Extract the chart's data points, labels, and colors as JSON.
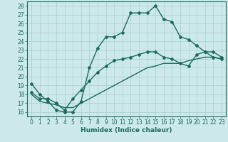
{
  "xlabel": "Humidex (Indice chaleur)",
  "bg_color": "#cce8ea",
  "line_color": "#1a6b5a",
  "grid_color": "#a8cfd0",
  "xlim": [
    -0.5,
    23.5
  ],
  "ylim": [
    15.5,
    28.5
  ],
  "xticks": [
    0,
    1,
    2,
    3,
    4,
    5,
    6,
    7,
    8,
    9,
    10,
    11,
    12,
    13,
    14,
    15,
    16,
    17,
    18,
    19,
    20,
    21,
    22,
    23
  ],
  "yticks": [
    16,
    17,
    18,
    19,
    20,
    21,
    22,
    23,
    24,
    25,
    26,
    27,
    28
  ],
  "line1_x": [
    0,
    1,
    2,
    3,
    4,
    5,
    6,
    7,
    8,
    9,
    10,
    11,
    12,
    13,
    14,
    15,
    16,
    17,
    18,
    19,
    20,
    21,
    22,
    23
  ],
  "line1_y": [
    19.2,
    18.0,
    17.2,
    16.2,
    16.0,
    16.0,
    17.2,
    21.0,
    23.2,
    24.5,
    24.5,
    25.0,
    27.2,
    27.2,
    27.2,
    28.0,
    26.5,
    26.2,
    24.5,
    24.2,
    23.5,
    22.8,
    22.8,
    22.2
  ],
  "line2_x": [
    0,
    1,
    2,
    3,
    4,
    5,
    6,
    7,
    8,
    9,
    10,
    11,
    12,
    13,
    14,
    15,
    16,
    17,
    18,
    19,
    20,
    21,
    22,
    23
  ],
  "line2_y": [
    18.2,
    17.5,
    17.5,
    17.0,
    16.2,
    17.5,
    18.5,
    19.5,
    20.5,
    21.2,
    21.8,
    22.0,
    22.2,
    22.5,
    22.8,
    22.8,
    22.2,
    22.0,
    21.5,
    21.2,
    22.5,
    22.8,
    22.2,
    22.0
  ],
  "line3_x": [
    0,
    1,
    2,
    3,
    4,
    5,
    6,
    7,
    8,
    9,
    10,
    11,
    12,
    13,
    14,
    15,
    16,
    17,
    18,
    19,
    20,
    21,
    22,
    23
  ],
  "line3_y": [
    18.0,
    17.2,
    17.0,
    16.8,
    16.5,
    16.5,
    17.0,
    17.5,
    18.0,
    18.5,
    19.0,
    19.5,
    20.0,
    20.5,
    21.0,
    21.2,
    21.5,
    21.5,
    21.5,
    21.8,
    22.0,
    22.2,
    22.2,
    22.0
  ],
  "marker": "D",
  "markersize": 2.0,
  "linewidth": 1.0,
  "tick_fontsize": 5.5,
  "xlabel_fontsize": 6.5,
  "xlabel_fontweight": "bold"
}
